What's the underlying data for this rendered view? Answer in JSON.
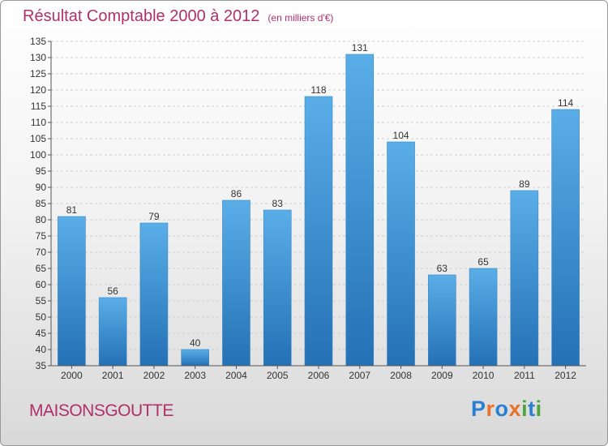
{
  "title": "Résultat Comptable 2000 à 2012",
  "unit": "(en milliers d'€)",
  "commune": "MAISONSGOUTTE",
  "logo": {
    "text": "Proxiti",
    "letters": [
      "P",
      "r",
      "o",
      "x",
      "i",
      "t",
      "i"
    ],
    "colors": [
      "#2a7fd0",
      "#e8722a",
      "#2a7fd0",
      "#e8722a",
      "#4aa63a",
      "#2a7fd0",
      "#4aa63a"
    ]
  },
  "colors": {
    "accent": "#b0306a",
    "bar_top": "#5aaee8",
    "bar_bottom": "#2471b5"
  },
  "chart_data": {
    "type": "bar",
    "title": "Résultat Comptable 2000 à 2012",
    "xlabel": "",
    "ylabel": "",
    "categories": [
      "2000",
      "2001",
      "2002",
      "2003",
      "2004",
      "2005",
      "2006",
      "2007",
      "2008",
      "2009",
      "2010",
      "2011",
      "2012"
    ],
    "values": [
      81,
      56,
      79,
      40,
      86,
      83,
      118,
      131,
      104,
      63,
      65,
      89,
      114
    ],
    "ylim": [
      35,
      135
    ],
    "yticks": [
      35,
      40,
      45,
      50,
      55,
      60,
      65,
      70,
      75,
      80,
      85,
      90,
      95,
      100,
      105,
      110,
      115,
      120,
      125,
      130,
      135
    ],
    "grid": true
  }
}
